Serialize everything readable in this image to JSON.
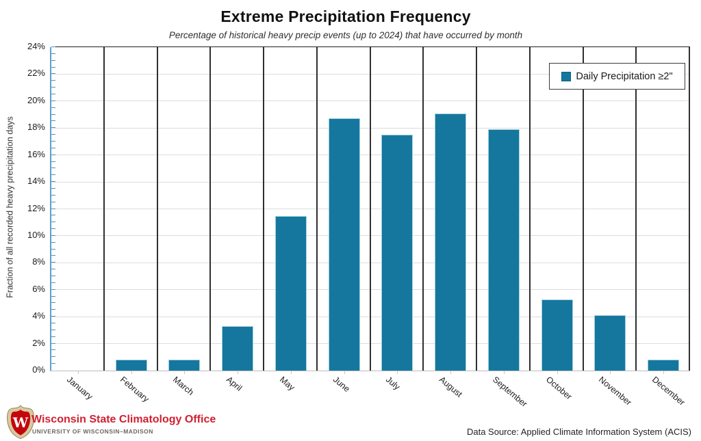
{
  "chart": {
    "title": "Extreme Precipitation Frequency",
    "subtitle": "Percentage of historical heavy precip events (up to 2024) that have occurred by month",
    "ylabel": "Fraction of all recorded heavy precipitation days",
    "legend_label": "Daily Precipitation ≥2\""
  },
  "chart_data": {
    "type": "bar",
    "title": "Extreme Precipitation Frequency",
    "subtitle": "Percentage of historical heavy precip events (up to 2024) that have occurred by month",
    "categories": [
      "January",
      "February",
      "March",
      "April",
      "May",
      "June",
      "July",
      "August",
      "September",
      "October",
      "November",
      "December"
    ],
    "values": [
      0,
      0.8,
      0.8,
      3.3,
      11.45,
      18.7,
      17.5,
      19.1,
      17.9,
      5.3,
      4.1,
      0.8
    ],
    "xlabel": "",
    "ylabel": "Fraction of all recorded heavy precipitation days",
    "ylim": [
      0,
      24
    ],
    "ytick_step": 2,
    "yticks": [
      "0%",
      "2%",
      "4%",
      "6%",
      "8%",
      "10%",
      "12%",
      "14%",
      "16%",
      "18%",
      "20%",
      "22%",
      "24%"
    ],
    "legend": [
      {
        "name": "Daily Precipitation ≥2\"",
        "color": "#15779e"
      }
    ],
    "legend_position": "top-right",
    "grid": {
      "horizontal": true,
      "vertical_month_separators": true
    },
    "units": "percent"
  },
  "colors": {
    "bar_fill": "#15779e",
    "bar_edge": "#a3cede",
    "y_axis": "#5f9fc7",
    "month_separator": "#2f2f2f",
    "h_gridline": "#dcdcdc",
    "brand_red": "#c5050c",
    "org_text_red": "#d02030"
  },
  "footer": {
    "org_name": "Wisconsin State Climatology Office",
    "org_sub": "UNIVERSITY OF WISCONSIN–MADISON",
    "data_source": "Data Source: Applied Climate Information System (ACIS)",
    "logo_letter": "W"
  }
}
